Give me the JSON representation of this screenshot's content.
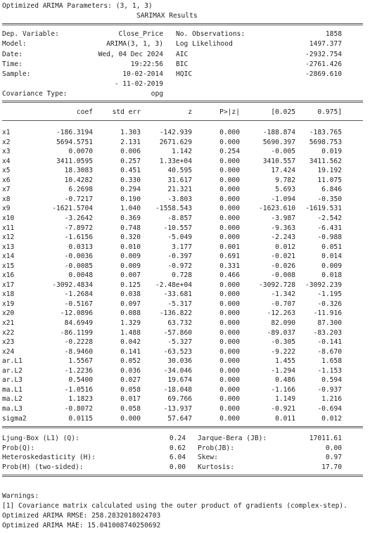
{
  "header": {
    "params_line": "Optimized ARIMA Parameters: (3, 1, 3)",
    "title": "SARIMAX Results"
  },
  "info": {
    "dep_var_label": "Dep. Variable:",
    "dep_var_value": "Close_Price",
    "nobs_label": "No. Observations:",
    "nobs_value": "1858",
    "model_label": "Model:",
    "model_value": "ARIMA(3, 1, 3)",
    "loglik_label": "Log Likelihood",
    "loglik_value": "1497.377",
    "date_label": "Date:",
    "date_value": "Wed, 04 Dec 2024",
    "aic_label": "AIC",
    "aic_value": "-2932.754",
    "time_label": "Time:",
    "time_value": "19:22:56",
    "bic_label": "BIC",
    "bic_value": "-2761.426",
    "sample_label": "Sample:",
    "sample_value": "10-02-2014",
    "hqic_label": "HQIC",
    "hqic_value": "-2869.610",
    "sample_end": "- 11-02-2019",
    "cov_label": "Covariance Type:",
    "cov_value": "opg"
  },
  "coef_table": {
    "headers": [
      "coef",
      "std err",
      "z",
      "P>|z|",
      "[0.025",
      "0.975]"
    ],
    "rows": [
      [
        "x1",
        "-186.3194",
        "1.303",
        "-142.939",
        "0.000",
        "-188.874",
        "-183.765"
      ],
      [
        "x2",
        "5694.5751",
        "2.131",
        "2671.629",
        "0.000",
        "5690.397",
        "5698.753"
      ],
      [
        "x3",
        "0.0070",
        "0.006",
        "1.142",
        "0.254",
        "-0.005",
        "0.019"
      ],
      [
        "x4",
        "3411.0595",
        "0.257",
        "1.33e+04",
        "0.000",
        "3410.557",
        "3411.562"
      ],
      [
        "x5",
        "18.3083",
        "0.451",
        "40.595",
        "0.000",
        "17.424",
        "19.192"
      ],
      [
        "x6",
        "10.4282",
        "0.330",
        "31.617",
        "0.000",
        "9.782",
        "11.075"
      ],
      [
        "x7",
        "6.2698",
        "0.294",
        "21.321",
        "0.000",
        "5.693",
        "6.846"
      ],
      [
        "x8",
        "-0.7217",
        "0.190",
        "-3.803",
        "0.000",
        "-1.094",
        "-0.350"
      ],
      [
        "x9",
        "-1621.5704",
        "1.040",
        "-1558.543",
        "0.000",
        "-1623.610",
        "-1619.531"
      ],
      [
        "x10",
        "-3.2642",
        "0.369",
        "-8.857",
        "0.000",
        "-3.987",
        "-2.542"
      ],
      [
        "x11",
        "-7.8972",
        "0.748",
        "-10.557",
        "0.000",
        "-9.363",
        "-6.431"
      ],
      [
        "x12",
        "-1.6156",
        "0.320",
        "-5.049",
        "0.000",
        "-2.243",
        "-0.988"
      ],
      [
        "x13",
        "0.0313",
        "0.010",
        "3.177",
        "0.001",
        "0.012",
        "0.051"
      ],
      [
        "x14",
        "-0.0036",
        "0.009",
        "-0.397",
        "0.691",
        "-0.021",
        "0.014"
      ],
      [
        "x15",
        "-0.0085",
        "0.009",
        "-0.972",
        "0.331",
        "-0.026",
        "0.009"
      ],
      [
        "x16",
        "0.0048",
        "0.007",
        "0.728",
        "0.466",
        "-0.008",
        "0.018"
      ],
      [
        "x17",
        "-3092.4834",
        "0.125",
        "-2.48e+04",
        "0.000",
        "-3092.728",
        "-3092.239"
      ],
      [
        "x18",
        "-1.2684",
        "0.038",
        "-33.681",
        "0.000",
        "-1.342",
        "-1.195"
      ],
      [
        "x19",
        "-0.5167",
        "0.097",
        "-5.317",
        "0.000",
        "-0.707",
        "-0.326"
      ],
      [
        "x20",
        "-12.0896",
        "0.088",
        "-136.822",
        "0.000",
        "-12.263",
        "-11.916"
      ],
      [
        "x21",
        "84.6949",
        "1.329",
        "63.732",
        "0.000",
        "82.090",
        "87.300"
      ],
      [
        "x22",
        "-86.1199",
        "1.488",
        "-57.860",
        "0.000",
        "-89.037",
        "-83.203"
      ],
      [
        "x23",
        "-0.2228",
        "0.042",
        "-5.327",
        "0.000",
        "-0.305",
        "-0.141"
      ],
      [
        "x24",
        "-8.9460",
        "0.141",
        "-63.523",
        "0.000",
        "-9.222",
        "-8.670"
      ],
      [
        "ar.L1",
        "1.5567",
        "0.052",
        "30.036",
        "0.000",
        "1.455",
        "1.658"
      ],
      [
        "ar.L2",
        "-1.2236",
        "0.036",
        "-34.046",
        "0.000",
        "-1.294",
        "-1.153"
      ],
      [
        "ar.L3",
        "0.5400",
        "0.027",
        "19.674",
        "0.000",
        "0.486",
        "0.594"
      ],
      [
        "ma.L1",
        "-1.0516",
        "0.058",
        "-18.048",
        "0.000",
        "-1.166",
        "-0.937"
      ],
      [
        "ma.L2",
        "1.1823",
        "0.017",
        "69.766",
        "0.000",
        "1.149",
        "1.216"
      ],
      [
        "ma.L3",
        "-0.8072",
        "0.058",
        "-13.937",
        "0.000",
        "-0.921",
        "-0.694"
      ],
      [
        "sigma2",
        "0.0115",
        "0.000",
        "57.647",
        "0.000",
        "0.011",
        "0.012"
      ]
    ]
  },
  "diagnostics": [
    [
      "Ljung-Box (L1) (Q):",
      "0.24",
      "Jarque-Bera (JB):",
      "17011.61"
    ],
    [
      "Prob(Q):",
      "0.62",
      "Prob(JB):",
      "0.00"
    ],
    [
      "Heteroskedasticity (H):",
      "6.04",
      "Skew:",
      "0.97"
    ],
    [
      "Prob(H) (two-sided):",
      "0.00",
      "Kurtosis:",
      "17.70"
    ]
  ],
  "footer": {
    "warnings_title": "Warnings:",
    "warning_1": "[1] Covariance matrix calculated using the outer product of gradients (complex-step).",
    "rmse_line": "Optimized ARIMA RMSE: 258.2832018024703",
    "mae_line": "Optimized ARIMA MAE: 15.041008740250692"
  }
}
